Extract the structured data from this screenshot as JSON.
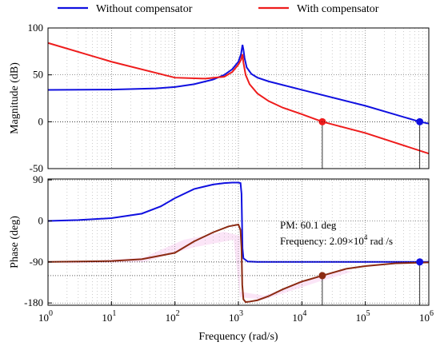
{
  "legend": [
    {
      "label": "Without compensator",
      "color": "#1010e0"
    },
    {
      "label": "With compensator",
      "color": "#ee1c1c"
    }
  ],
  "chart_data": [
    {
      "type": "line",
      "panel": "magnitude",
      "ylabel": "Magnitude (dB)",
      "xscale": "log",
      "xlim": [
        1,
        1000000
      ],
      "ylim": [
        -50,
        100
      ],
      "yticks": [
        "100",
        "50",
        "0",
        "-50"
      ],
      "ytick_values": [
        100,
        50,
        0,
        -50
      ],
      "grid": true,
      "series": [
        {
          "name": "Without compensator",
          "color": "#1010e0",
          "x": [
            1,
            10,
            50,
            100,
            200,
            400,
            600,
            800,
            1000,
            1100,
            1160,
            1200,
            1250,
            1350,
            1600,
            2000,
            3000,
            10000,
            100000,
            720000,
            1000000
          ],
          "y": [
            34,
            34.3,
            35.5,
            37,
            40,
            45,
            50,
            56,
            64,
            72,
            82,
            77,
            68,
            58,
            51,
            47,
            43,
            34,
            17,
            0,
            -2
          ]
        },
        {
          "name": "With compensator",
          "color": "#ee1c1c",
          "x": [
            1,
            10,
            100,
            300,
            600,
            800,
            1000,
            1100,
            1160,
            1200,
            1300,
            1500,
            2000,
            3000,
            5000,
            10000,
            21000,
            100000,
            1000000
          ],
          "y": [
            84,
            64,
            47,
            46,
            48,
            53,
            61,
            66,
            72,
            63,
            50,
            40,
            30,
            22,
            15,
            8,
            0,
            -12,
            -34
          ]
        }
      ],
      "markers": [
        {
          "x": 21000,
          "y": 0,
          "color": "#ee1c1c"
        },
        {
          "x": 720000,
          "y": 0,
          "color": "#1010e0"
        }
      ]
    },
    {
      "type": "line",
      "panel": "phase",
      "ylabel": "Phase (deg)",
      "xlabel": "Frequency (rad/s)",
      "xscale": "log",
      "xlim": [
        1,
        1000000
      ],
      "ylim": [
        -185,
        92
      ],
      "yticks": [
        "90",
        "0",
        "-90",
        "-180"
      ],
      "ytick_values": [
        90,
        0,
        -90,
        -180
      ],
      "xticks": [
        {
          "base": "10",
          "exp": "0"
        },
        {
          "base": "10",
          "exp": "1"
        },
        {
          "base": "10",
          "exp": "2"
        },
        {
          "base": "10",
          "exp": "3"
        },
        {
          "base": "10",
          "exp": "4"
        },
        {
          "base": "10",
          "exp": "5"
        },
        {
          "base": "10",
          "exp": "6"
        }
      ],
      "xtick_values": [
        1,
        10,
        100,
        1000,
        10000,
        100000,
        1000000
      ],
      "grid": true,
      "series": [
        {
          "name": "Without compensator",
          "color": "#1010e0",
          "x": [
            1,
            3,
            10,
            30,
            60,
            100,
            200,
            400,
            600,
            800,
            1000,
            1080,
            1120,
            1140,
            1160,
            1200,
            1400,
            2000,
            10000,
            1000000
          ],
          "y": [
            0,
            2,
            6,
            16,
            32,
            50,
            70,
            80,
            83,
            84,
            84,
            83,
            60,
            0,
            -60,
            -82,
            -89,
            -90,
            -90,
            -90
          ]
        },
        {
          "name": "With compensator",
          "color": "#8b2a12",
          "x": [
            1,
            10,
            30,
            100,
            200,
            400,
            700,
            1000,
            1080,
            1120,
            1150,
            1200,
            1300,
            1500,
            2000,
            3000,
            5000,
            10000,
            21000,
            50000,
            100000,
            300000,
            1000000
          ],
          "y": [
            -90,
            -88,
            -84,
            -70,
            -45,
            -25,
            -12,
            -8,
            -20,
            -60,
            -140,
            -172,
            -178,
            -177,
            -174,
            -165,
            -150,
            -133,
            -120,
            -105,
            -99,
            -93,
            -91
          ]
        }
      ],
      "markers": [
        {
          "x": 21000,
          "y": -120,
          "color": "#8b2a12"
        },
        {
          "x": 720000,
          "y": -90,
          "color": "#1010e0"
        }
      ],
      "annotations": [
        {
          "text": "PM: 60.1 deg"
        },
        {
          "text": "Frequency: 2.09×10",
          "sup": "4",
          "suffix": " rad /s"
        }
      ]
    }
  ]
}
